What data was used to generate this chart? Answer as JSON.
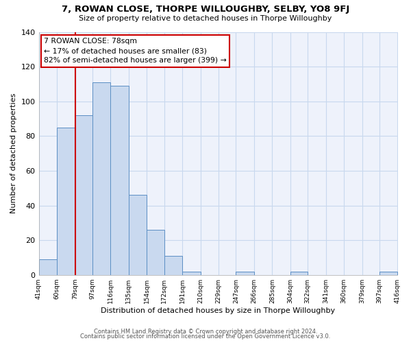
{
  "title": "7, ROWAN CLOSE, THORPE WILLOUGHBY, SELBY, YO8 9FJ",
  "subtitle": "Size of property relative to detached houses in Thorpe Willoughby",
  "xlabel": "Distribution of detached houses by size in Thorpe Willoughby",
  "ylabel": "Number of detached properties",
  "bar_edges": [
    41,
    60,
    79,
    97,
    116,
    135,
    154,
    172,
    191,
    210,
    229,
    247,
    266,
    285,
    304,
    322,
    341,
    360,
    379,
    397,
    416
  ],
  "bar_heights": [
    9,
    85,
    92,
    111,
    109,
    46,
    26,
    11,
    2,
    0,
    0,
    2,
    0,
    0,
    2,
    0,
    0,
    0,
    0,
    2
  ],
  "bar_color": "#c9d9ef",
  "bar_edge_color": "#5b8ec4",
  "property_line_x": 79,
  "property_line_color": "#cc0000",
  "annotation_text": "7 ROWAN CLOSE: 78sqm\n← 17% of detached houses are smaller (83)\n82% of semi-detached houses are larger (399) →",
  "annotation_box_color": "#cc0000",
  "ylim": [
    0,
    140
  ],
  "yticks": [
    0,
    20,
    40,
    60,
    80,
    100,
    120,
    140
  ],
  "tick_labels": [
    "41sqm",
    "60sqm",
    "79sqm",
    "97sqm",
    "116sqm",
    "135sqm",
    "154sqm",
    "172sqm",
    "191sqm",
    "210sqm",
    "229sqm",
    "247sqm",
    "266sqm",
    "285sqm",
    "304sqm",
    "322sqm",
    "341sqm",
    "360sqm",
    "379sqm",
    "397sqm",
    "416sqm"
  ],
  "grid_color": "#c8d8ee",
  "bg_color": "#eef2fb",
  "footer1": "Contains HM Land Registry data © Crown copyright and database right 2024.",
  "footer2": "Contains public sector information licensed under the Open Government Licence v3.0."
}
